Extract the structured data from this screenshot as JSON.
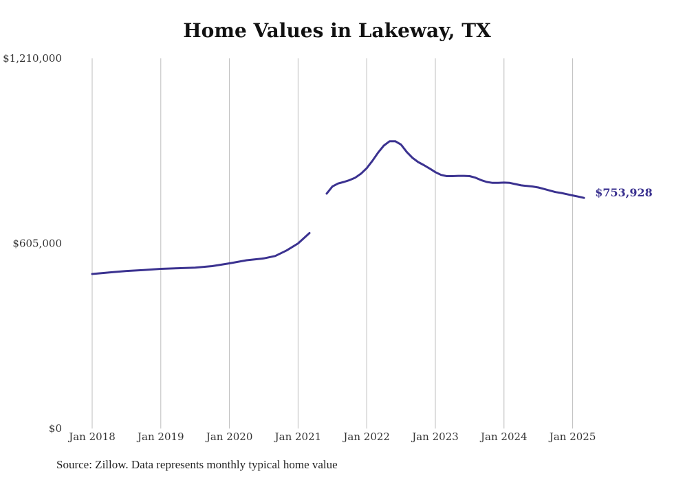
{
  "chart_data": {
    "type": "line",
    "title": "Home Values in Lakeway, TX",
    "xlabel": "",
    "ylabel": "",
    "ylim": [
      0,
      1210000
    ],
    "y_ticks": [
      {
        "value": 1210000,
        "label": "$1,210,000"
      },
      {
        "value": 605000,
        "label": "$605,000"
      },
      {
        "value": 0,
        "label": "$0"
      }
    ],
    "x_ticks": [
      "Jan 2018",
      "Jan 2019",
      "Jan 2020",
      "Jan 2021",
      "Jan 2022",
      "Jan 2023",
      "Jan 2024",
      "Jan 2025"
    ],
    "grid": "vertical",
    "line_color": "#3b3290",
    "end_label": "$753,928",
    "series": [
      {
        "segments": [
          [
            [
              "2018-01",
              505000
            ],
            [
              "2018-04",
              510000
            ],
            [
              "2018-07",
              515000
            ],
            [
              "2018-10",
              518000
            ],
            [
              "2019-01",
              522000
            ],
            [
              "2019-04",
              524000
            ],
            [
              "2019-07",
              526000
            ],
            [
              "2019-10",
              531000
            ],
            [
              "2020-01",
              540000
            ],
            [
              "2020-04",
              550000
            ],
            [
              "2020-07",
              556000
            ],
            [
              "2020-09",
              564000
            ],
            [
              "2020-11",
              582000
            ],
            [
              "2021-01",
              605000
            ],
            [
              "2021-03",
              639000
            ]
          ],
          [
            [
              "2021-06",
              768000
            ],
            [
              "2021-07",
              791000
            ],
            [
              "2021-08",
              801000
            ],
            [
              "2021-09",
              806000
            ],
            [
              "2021-10",
              812000
            ],
            [
              "2021-11",
              820000
            ],
            [
              "2021-12",
              833000
            ],
            [
              "2022-01",
              851000
            ],
            [
              "2022-02",
              875000
            ],
            [
              "2022-03",
              902000
            ],
            [
              "2022-04",
              925000
            ],
            [
              "2022-05",
              939000
            ],
            [
              "2022-06",
              939000
            ],
            [
              "2022-07",
              928000
            ],
            [
              "2022-08",
              904000
            ],
            [
              "2022-09",
              885000
            ],
            [
              "2022-10",
              871000
            ],
            [
              "2022-11",
              861000
            ],
            [
              "2022-12",
              850000
            ],
            [
              "2023-01",
              838000
            ],
            [
              "2023-02",
              829000
            ],
            [
              "2023-03",
              825000
            ],
            [
              "2023-04",
              825000
            ],
            [
              "2023-05",
              826000
            ],
            [
              "2023-06",
              826000
            ],
            [
              "2023-07",
              825000
            ],
            [
              "2023-08",
              820000
            ],
            [
              "2023-09",
              812000
            ],
            [
              "2023-10",
              806000
            ],
            [
              "2023-11",
              803000
            ],
            [
              "2023-12",
              803000
            ],
            [
              "2024-01",
              804000
            ],
            [
              "2024-02",
              803000
            ],
            [
              "2024-03",
              799000
            ],
            [
              "2024-04",
              795000
            ],
            [
              "2024-05",
              793000
            ],
            [
              "2024-06",
              791000
            ],
            [
              "2024-07",
              788000
            ],
            [
              "2024-08",
              783000
            ],
            [
              "2024-09",
              778000
            ],
            [
              "2024-10",
              773000
            ],
            [
              "2024-11",
              770000
            ],
            [
              "2024-12",
              766000
            ],
            [
              "2025-01",
              762000
            ],
            [
              "2025-02",
              758000
            ],
            [
              "2025-03",
              753928
            ]
          ]
        ]
      }
    ]
  },
  "source_note": "Source: Zillow. Data represents monthly typical home value"
}
